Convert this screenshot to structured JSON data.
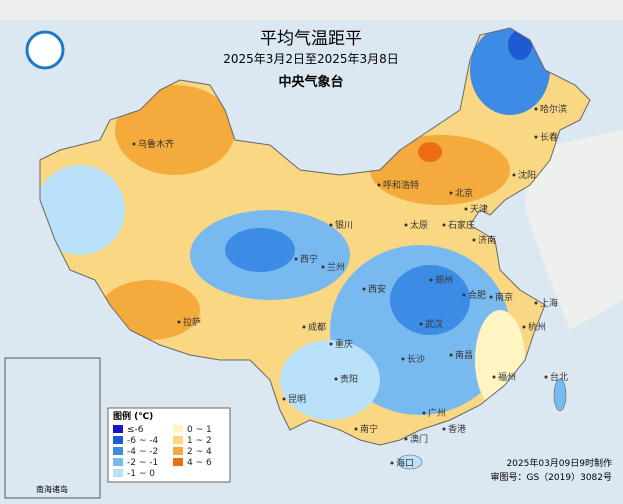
{
  "header": {
    "title": "平均气温距平",
    "subtitle": "2025年3月2日至2025年3月8日",
    "agency": "中央气象台"
  },
  "legend": {
    "title": "图例 (℃)",
    "items": [
      {
        "label": "≤-6",
        "color": "#1414c8"
      },
      {
        "label": "-6 ~ -4",
        "color": "#1e5ad2"
      },
      {
        "label": "-4 ~ -2",
        "color": "#3c8ce6"
      },
      {
        "label": "-2 ~ -1",
        "color": "#78b9f0"
      },
      {
        "label": "-1 ~ 0",
        "color": "#b9e1fa"
      },
      {
        "label": "0 ~ 1",
        "color": "#fff5c3"
      },
      {
        "label": "1 ~ 2",
        "color": "#fad782"
      },
      {
        "label": "2 ~ 4",
        "color": "#f5aa3c"
      },
      {
        "label": "4 ~ 6",
        "color": "#eb6e14"
      }
    ]
  },
  "cities": [
    "哈尔滨",
    "长春",
    "沈阳",
    "乌鲁木齐",
    "呼和浩特",
    "北京",
    "天津",
    "银川",
    "太原",
    "石家庄",
    "济南",
    "西宁",
    "兰州",
    "郑州",
    "西安",
    "合肥",
    "南京",
    "上海",
    "武汉",
    "杭州",
    "成都",
    "拉萨",
    "重庆",
    "长沙",
    "南昌",
    "贵阳",
    "福州",
    "台北",
    "昆明",
    "广州",
    "南宁",
    "香港",
    "澳门",
    "海口"
  ],
  "inset": {
    "label": "南海诸岛"
  },
  "footer": {
    "made": "2025年03月09日9时制作",
    "approval": "审图号：GS（2019）3082号"
  }
}
